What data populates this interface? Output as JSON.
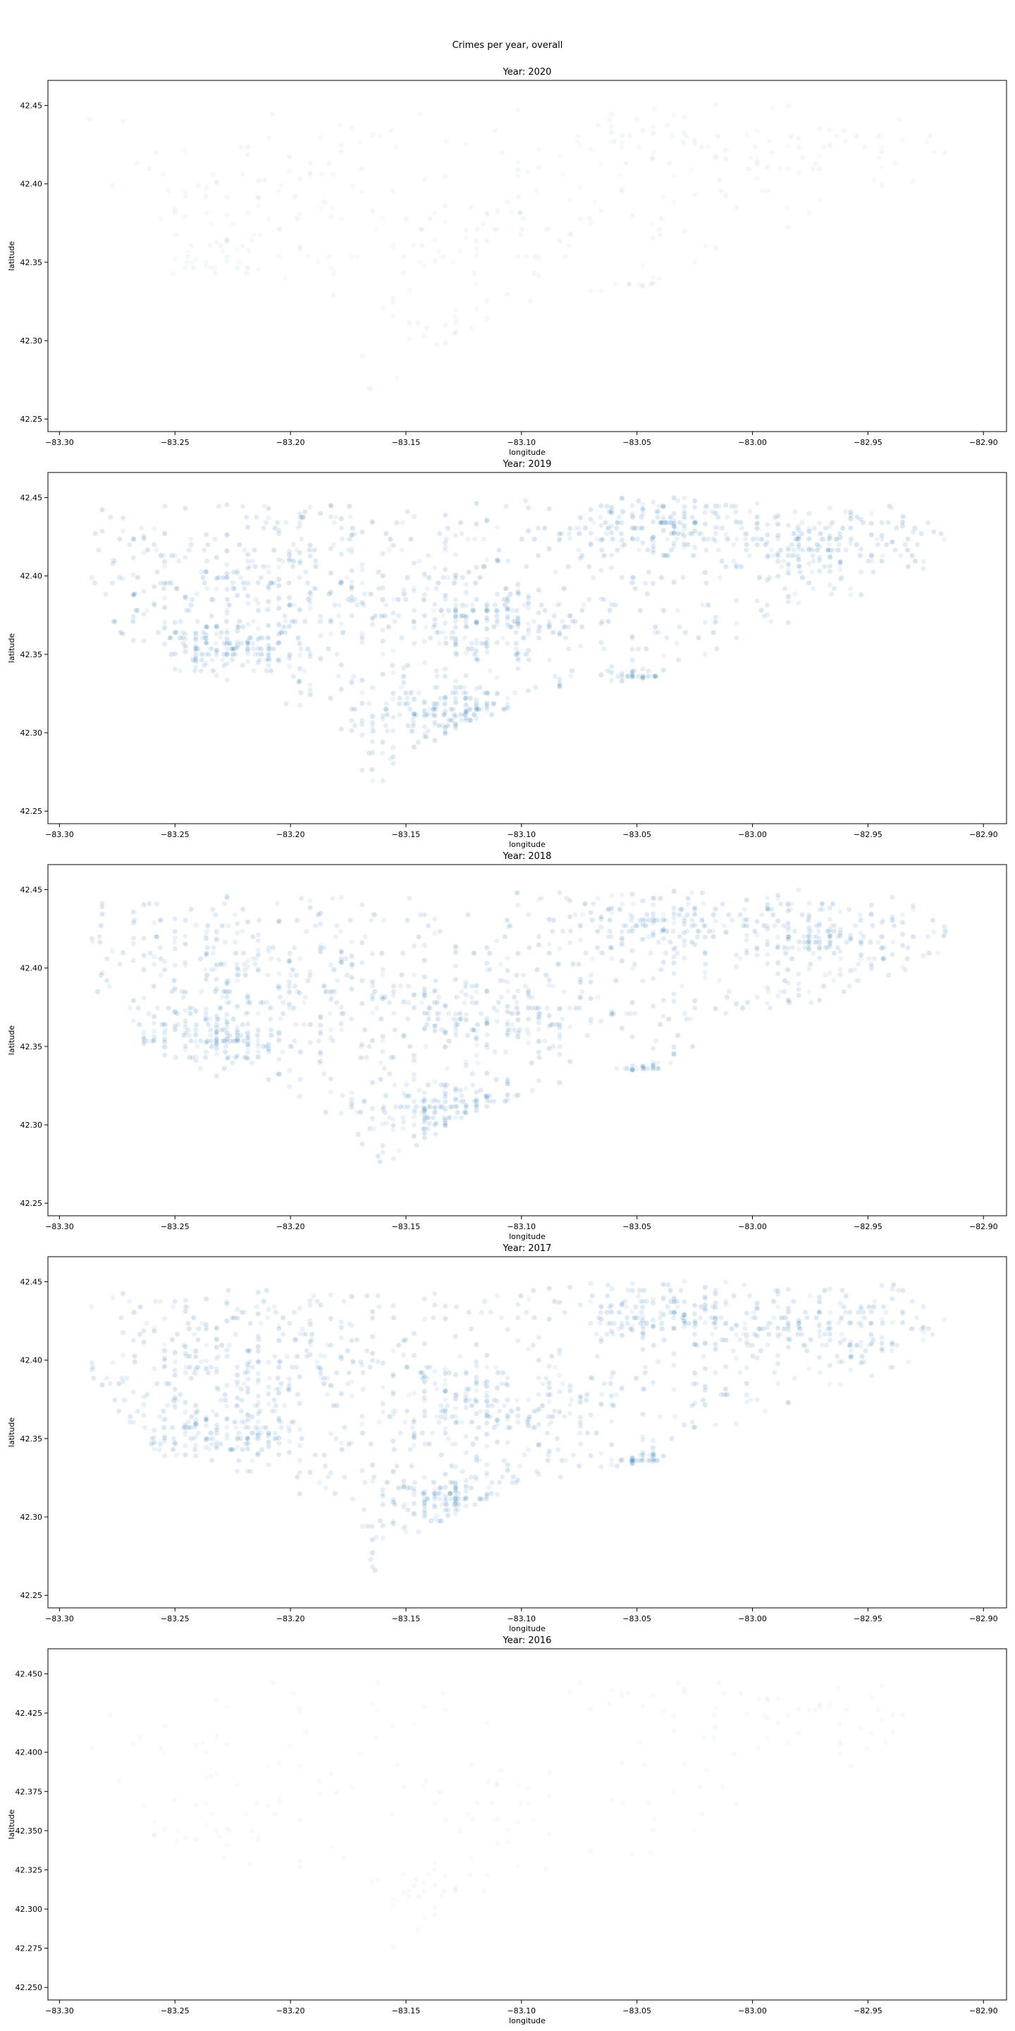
{
  "figure": {
    "suptitle": "Crimes per year, overall"
  },
  "chart_data": [
    {
      "type": "scatter",
      "title": "Year: 2020",
      "xlabel": "longitude",
      "ylabel": "latitude",
      "xlim": [
        -83.305,
        -82.89
      ],
      "ylim": [
        42.242,
        42.466
      ],
      "xticks": [
        -83.3,
        -83.25,
        -83.2,
        -83.15,
        -83.1,
        -83.05,
        -83.0,
        -82.95,
        -82.9
      ],
      "yticks": [
        42.25,
        42.3,
        42.35,
        42.4,
        42.45
      ],
      "xtick_labels": [
        "−83.30",
        "−83.25",
        "−83.20",
        "−83.15",
        "−83.10",
        "−83.05",
        "−83.00",
        "−82.95",
        "−82.90"
      ],
      "ytick_labels": [
        "42.25",
        "42.30",
        "42.35",
        "42.40",
        "42.45"
      ],
      "marker_color": "#1f77b4",
      "density": 0.25,
      "grid": false
    },
    {
      "type": "scatter",
      "title": "Year: 2019",
      "xlabel": "longitude",
      "ylabel": "latitude",
      "xlim": [
        -83.305,
        -82.89
      ],
      "ylim": [
        42.242,
        42.466
      ],
      "xticks": [
        -83.3,
        -83.25,
        -83.2,
        -83.15,
        -83.1,
        -83.05,
        -83.0,
        -82.95,
        -82.9
      ],
      "yticks": [
        42.25,
        42.3,
        42.35,
        42.4,
        42.45
      ],
      "xtick_labels": [
        "−83.30",
        "−83.25",
        "−83.20",
        "−83.15",
        "−83.10",
        "−83.05",
        "−83.00",
        "−82.95",
        "−82.90"
      ],
      "ytick_labels": [
        "42.25",
        "42.30",
        "42.35",
        "42.40",
        "42.45"
      ],
      "marker_color": "#1f77b4",
      "density": 1.0,
      "grid": false
    },
    {
      "type": "scatter",
      "title": "Year: 2018",
      "xlabel": "longitude",
      "ylabel": "latitude",
      "xlim": [
        -83.305,
        -82.89
      ],
      "ylim": [
        42.242,
        42.466
      ],
      "xticks": [
        -83.3,
        -83.25,
        -83.2,
        -83.15,
        -83.1,
        -83.05,
        -83.0,
        -82.95,
        -82.9
      ],
      "yticks": [
        42.25,
        42.3,
        42.35,
        42.4,
        42.45
      ],
      "xtick_labels": [
        "−83.30",
        "−83.25",
        "−83.20",
        "−83.15",
        "−83.10",
        "−83.05",
        "−83.00",
        "−82.95",
        "−82.90"
      ],
      "ytick_labels": [
        "42.25",
        "42.30",
        "42.35",
        "42.40",
        "42.45"
      ],
      "marker_color": "#1f77b4",
      "density": 0.95,
      "grid": false
    },
    {
      "type": "scatter",
      "title": "Year: 2017",
      "xlabel": "longitude",
      "ylabel": "latitude",
      "xlim": [
        -83.305,
        -82.89
      ],
      "ylim": [
        42.242,
        42.466
      ],
      "xticks": [
        -83.3,
        -83.25,
        -83.2,
        -83.15,
        -83.1,
        -83.05,
        -83.0,
        -82.95,
        -82.9
      ],
      "yticks": [
        42.25,
        42.3,
        42.35,
        42.4,
        42.45
      ],
      "xtick_labels": [
        "−83.30",
        "−83.25",
        "−83.20",
        "−83.15",
        "−83.10",
        "−83.05",
        "−83.00",
        "−82.95",
        "−82.90"
      ],
      "ytick_labels": [
        "42.25",
        "42.30",
        "42.35",
        "42.40",
        "42.45"
      ],
      "marker_color": "#1f77b4",
      "density": 0.95,
      "grid": false
    },
    {
      "type": "scatter",
      "title": "Year: 2016",
      "xlabel": "longitude",
      "ylabel": "latitude",
      "xlim": [
        -83.305,
        -82.89
      ],
      "ylim": [
        42.242,
        42.466
      ],
      "xticks": [
        -83.3,
        -83.25,
        -83.2,
        -83.15,
        -83.1,
        -83.05,
        -83.0,
        -82.95,
        -82.9
      ],
      "yticks": [
        42.25,
        42.275,
        42.3,
        42.325,
        42.35,
        42.375,
        42.4,
        42.425,
        42.45
      ],
      "xtick_labels": [
        "−83.30",
        "−83.25",
        "−83.20",
        "−83.15",
        "−83.10",
        "−83.05",
        "−83.00",
        "−82.95",
        "−82.90"
      ],
      "ytick_labels": [
        "42.250",
        "42.275",
        "42.300",
        "42.325",
        "42.350",
        "42.375",
        "42.400",
        "42.425",
        "42.450"
      ],
      "marker_color": "#1f77b4",
      "density": 0.12,
      "grid": false
    }
  ]
}
